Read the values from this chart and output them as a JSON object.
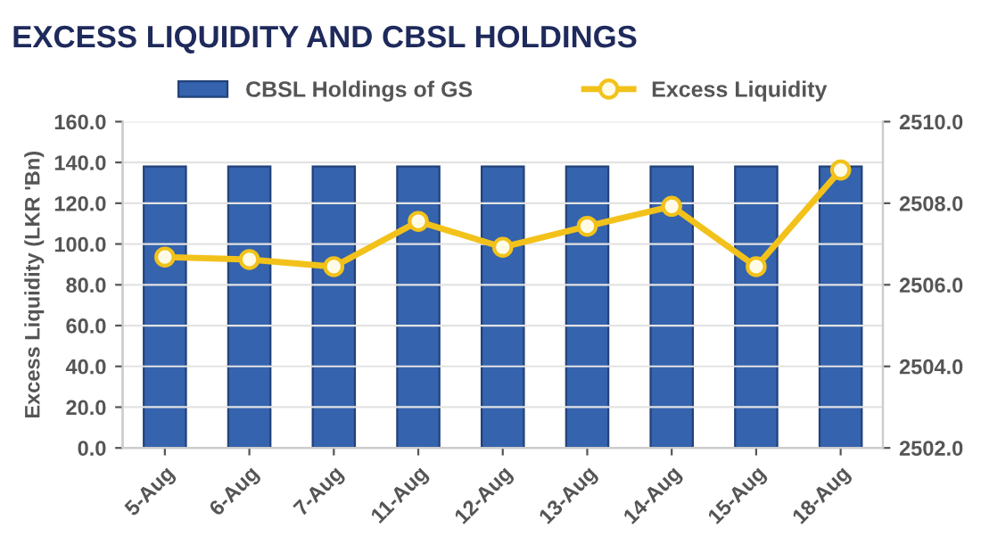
{
  "chart_data": {
    "type": "bar",
    "title": "EXCESS LIQUIDITY AND CBSL HOLDINGS",
    "ylabel": "Excess Liquidity (LKR 'Bn)",
    "categories": [
      "5-Aug",
      "6-Aug",
      "7-Aug",
      "11-Aug",
      "12-Aug",
      "13-Aug",
      "14-Aug",
      "15-Aug",
      "18-Aug"
    ],
    "series": [
      {
        "name": "CBSL Holdings of GS",
        "axis": "y2",
        "color": "#3563ad",
        "values": [
          2508.9,
          2508.9,
          2508.9,
          2508.9,
          2508.9,
          2508.9,
          2508.9,
          2508.9,
          2508.9
        ]
      },
      {
        "name": "Excess Liquidity",
        "type": "line",
        "color": "#f2c21b",
        "marker": "circle",
        "values": [
          93.6,
          92.4,
          88.9,
          111.1,
          98.4,
          108.7,
          118.5,
          88.9,
          136.3
        ]
      }
    ],
    "ylim": [
      0,
      160
    ],
    "yticks": [
      {
        "value": 0,
        "label": "0.0"
      },
      {
        "value": 20,
        "label": "20.0"
      },
      {
        "value": 40,
        "label": "40.0"
      },
      {
        "value": 60,
        "label": "60.0"
      },
      {
        "value": 80,
        "label": "80.0"
      },
      {
        "value": 100,
        "label": "100.0"
      },
      {
        "value": 120,
        "label": "120.0"
      },
      {
        "value": 140,
        "label": "140.0"
      },
      {
        "value": 160,
        "label": "160.0"
      }
    ],
    "y2lim": [
      2502,
      2510
    ],
    "y2ticks": [
      {
        "value": 2502,
        "label": "2502.0"
      },
      {
        "value": 2504,
        "label": "2504.0"
      },
      {
        "value": 2506,
        "label": "2506.0"
      },
      {
        "value": 2508,
        "label": "2508.0"
      },
      {
        "value": 2510,
        "label": "2510.0"
      }
    ],
    "grid": "y",
    "legend": "top"
  }
}
